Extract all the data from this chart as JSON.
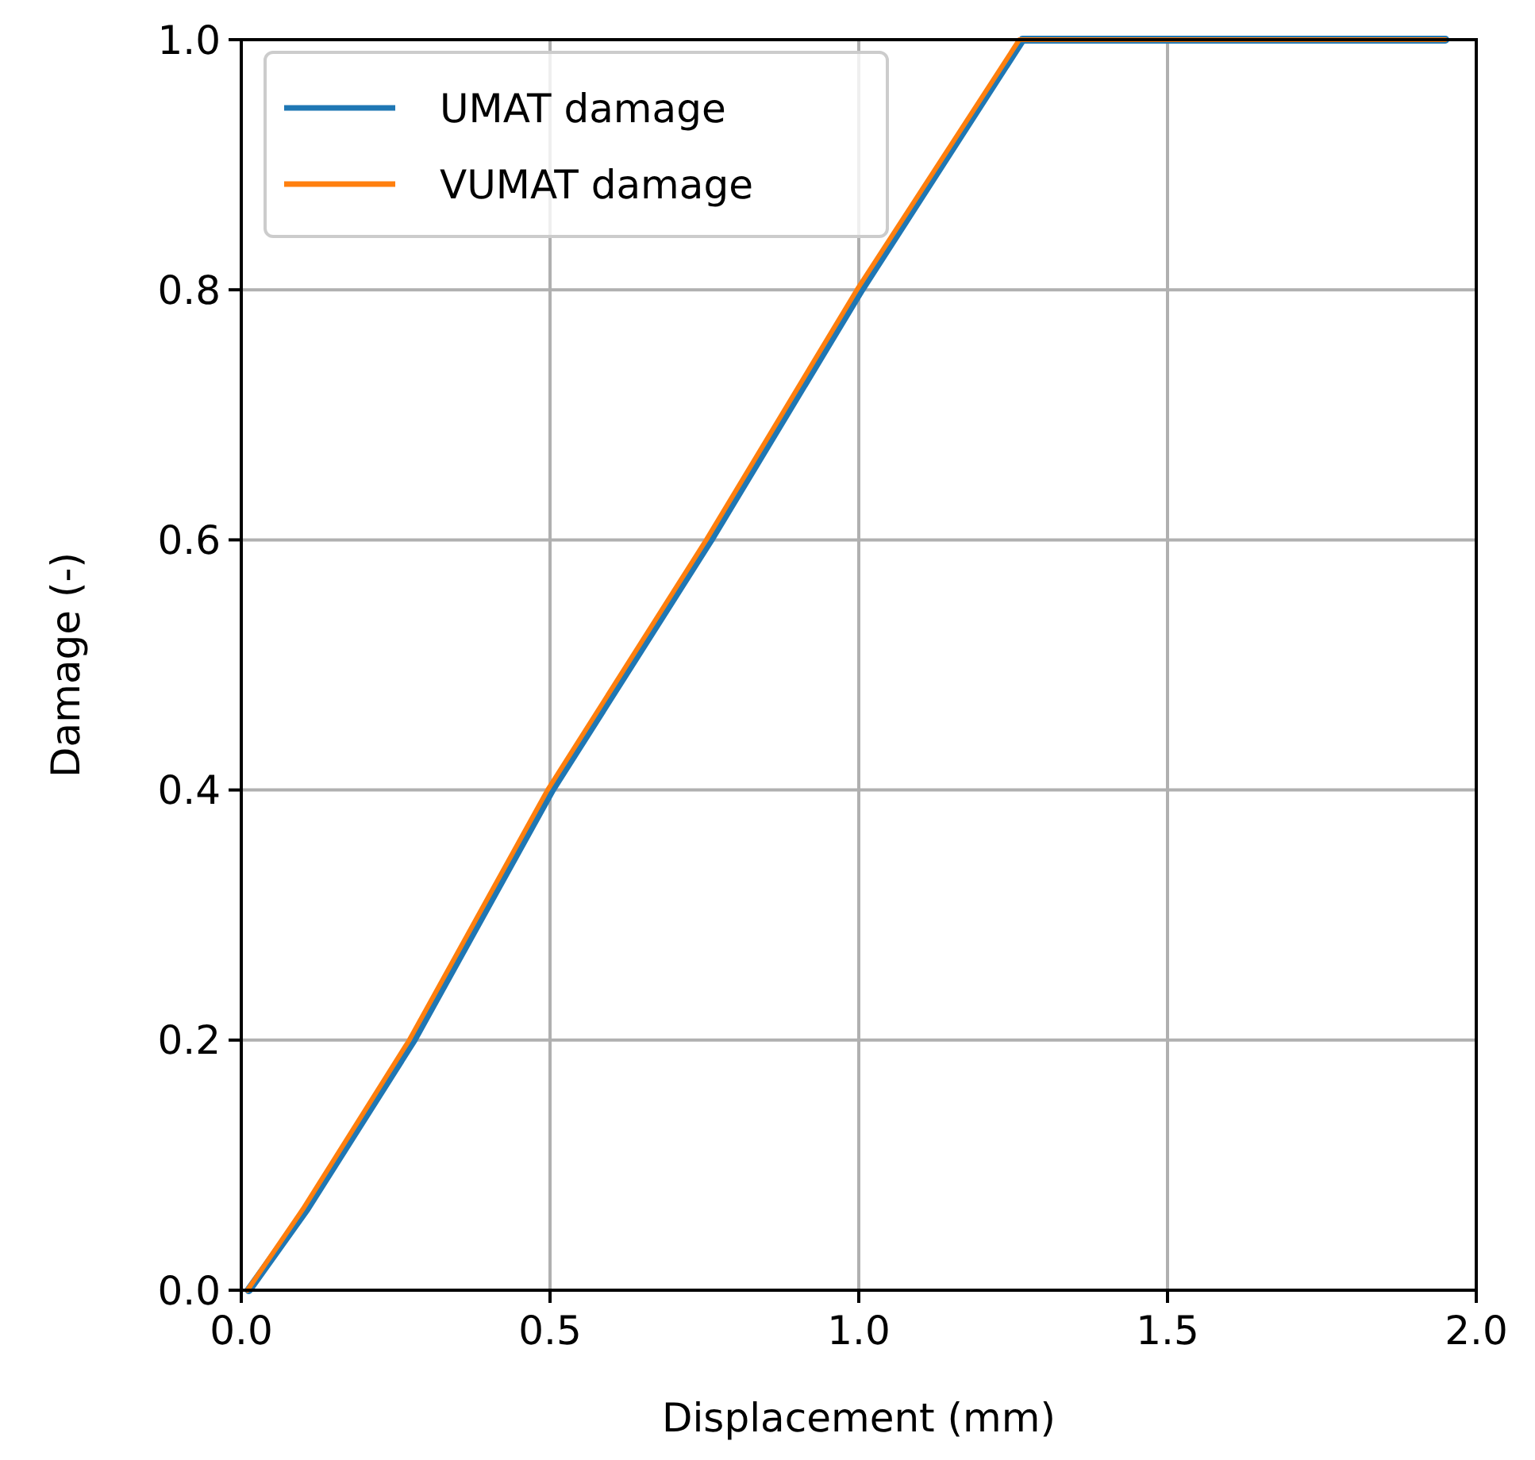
{
  "chart_data": {
    "type": "line",
    "xlabel": "Displacement (mm)",
    "ylabel": "Damage (-)",
    "xlim": [
      0,
      2
    ],
    "ylim": [
      0,
      1
    ],
    "xticks": [
      {
        "value": 0,
        "label": "0.0"
      },
      0.5,
      {
        "value": 1,
        "label": "1.0"
      },
      1.5,
      {
        "value": 2,
        "label": "2.0"
      }
    ],
    "yticks": [
      {
        "value": 0,
        "label": "0.0"
      },
      0.2,
      0.4,
      0.6,
      0.8,
      {
        "value": 1,
        "label": "1.0"
      }
    ],
    "grid": true,
    "legend": "top left",
    "series": [
      {
        "name": "UMAT damage",
        "color": "#1f77b4",
        "x": [
          0.012,
          0.106,
          0.279,
          0.503,
          0.76,
          1.004,
          1.265,
          1.95
        ],
        "values": [
          0,
          0.065,
          0.2,
          0.4,
          0.6,
          0.8,
          1.0,
          1.0
        ]
      },
      {
        "name": "VUMAT damage",
        "color": "#ff7f0e",
        "x": [
          0.01,
          0.1,
          0.272,
          0.496,
          0.753,
          0.997,
          1.26,
          1.95
        ],
        "values": [
          0,
          0.065,
          0.2,
          0.4,
          0.6,
          0.8,
          1.0,
          1.0
        ]
      }
    ]
  }
}
